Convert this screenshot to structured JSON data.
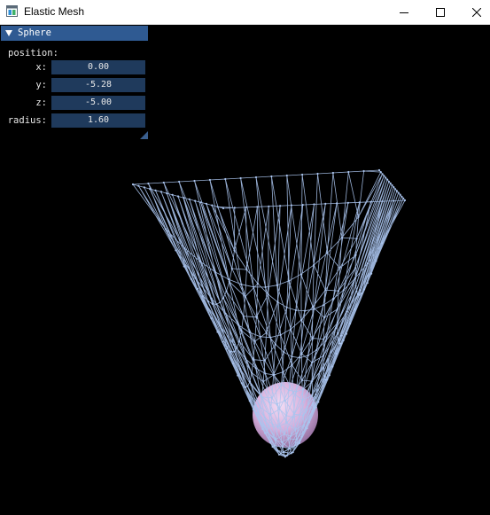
{
  "window": {
    "title": "Elastic Mesh",
    "icon": "app-window-icon",
    "controls": {
      "minimize": "minimize-icon",
      "maximize": "maximize-icon",
      "close": "close-icon"
    }
  },
  "panel": {
    "title": "Sphere",
    "expanded": true,
    "section_label": "position:",
    "fields": {
      "x": {
        "label": "x:",
        "value": "0.00"
      },
      "y": {
        "label": "y:",
        "value": "-5.28"
      },
      "z": {
        "label": "z:",
        "value": "-5.00"
      },
      "radius": {
        "label": "radius:",
        "value": "1.60"
      }
    }
  },
  "scene": {
    "background_color": "#000000",
    "mesh_color": "#aac4ee",
    "sphere_color": "#e0b8e4"
  }
}
